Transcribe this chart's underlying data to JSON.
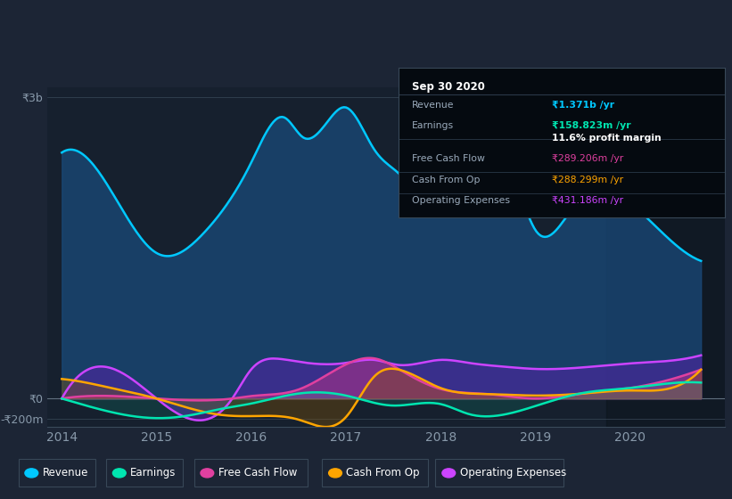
{
  "bg_color": "#1c2535",
  "plot_bg": "#16202e",
  "ylabel_top": "₹3b",
  "ylabel_zero": "₹0",
  "ylabel_neg": "-₹200m",
  "x_labels": [
    "2014",
    "2015",
    "2016",
    "2017",
    "2018",
    "2019",
    "2020"
  ],
  "legend_items": [
    "Revenue",
    "Earnings",
    "Free Cash Flow",
    "Cash From Op",
    "Operating Expenses"
  ],
  "legend_colors": [
    "#00c8ff",
    "#00e5b0",
    "#e040a0",
    "#ffa500",
    "#cc44ff"
  ],
  "info_box": {
    "title": "Sep 30 2020",
    "rows": [
      {
        "label": "Revenue",
        "value": "₹1.371b /yr",
        "value_color": "#00c8ff",
        "bold": true
      },
      {
        "label": "Earnings",
        "value": "₹158.823m /yr",
        "value_color": "#00e5b0",
        "bold": true
      },
      {
        "label": "",
        "value": "11.6% profit margin",
        "value_color": "#ffffff",
        "bold": true
      },
      {
        "label": "Free Cash Flow",
        "value": "₹289.206m /yr",
        "value_color": "#e040a0",
        "bold": false
      },
      {
        "label": "Cash From Op",
        "value": "₹288.299m /yr",
        "value_color": "#ffa500",
        "bold": false
      },
      {
        "label": "Operating Expenses",
        "value": "₹431.186m /yr",
        "value_color": "#cc44ff",
        "bold": false
      }
    ]
  },
  "revenue_x": [
    2014.0,
    2014.5,
    2015.0,
    2015.5,
    2016.0,
    2016.35,
    2016.55,
    2016.8,
    2017.0,
    2017.3,
    2017.55,
    2018.0,
    2018.4,
    2018.8,
    2019.0,
    2019.4,
    2019.7,
    2020.0,
    2020.4,
    2020.75
  ],
  "revenue_y": [
    2450,
    2100,
    1450,
    1650,
    2350,
    2800,
    2600,
    2750,
    2900,
    2480,
    2250,
    1850,
    2020,
    2100,
    1680,
    1900,
    2080,
    1950,
    1600,
    1371
  ],
  "earnings_x": [
    2014.0,
    2014.5,
    2015.0,
    2015.3,
    2015.7,
    2016.0,
    2016.5,
    2017.0,
    2017.5,
    2018.0,
    2018.3,
    2018.6,
    2019.0,
    2019.5,
    2020.0,
    2020.4,
    2020.75
  ],
  "earnings_y": [
    0,
    -130,
    -195,
    -175,
    -100,
    -50,
    50,
    30,
    -70,
    -55,
    -155,
    -170,
    -75,
    55,
    105,
    150,
    159
  ],
  "fcf_x": [
    2014.0,
    2015.0,
    2015.8,
    2016.0,
    2016.5,
    2017.0,
    2017.3,
    2017.6,
    2018.0,
    2018.5,
    2019.0,
    2019.5,
    2020.0,
    2020.5,
    2020.75
  ],
  "fcf_y": [
    0,
    0,
    0,
    25,
    90,
    340,
    400,
    270,
    95,
    45,
    0,
    50,
    105,
    210,
    289
  ],
  "cfo_x": [
    2014.0,
    2014.25,
    2014.5,
    2015.0,
    2015.4,
    2015.7,
    2016.0,
    2016.5,
    2017.0,
    2017.3,
    2017.55,
    2018.0,
    2018.5,
    2019.0,
    2019.5,
    2020.0,
    2020.5,
    2020.75
  ],
  "cfo_y": [
    195,
    160,
    110,
    0,
    -110,
    -165,
    -175,
    -210,
    -185,
    220,
    290,
    105,
    45,
    30,
    50,
    80,
    125,
    288
  ],
  "opex_x": [
    2014.0,
    2015.0,
    2015.8,
    2016.0,
    2016.3,
    2016.55,
    2017.0,
    2017.3,
    2017.55,
    2018.0,
    2018.3,
    2018.7,
    2019.0,
    2019.5,
    2020.0,
    2020.5,
    2020.75
  ],
  "opex_y": [
    0,
    0,
    0,
    290,
    395,
    360,
    355,
    385,
    335,
    385,
    355,
    315,
    295,
    310,
    350,
    385,
    431
  ],
  "ylim": [
    -280,
    3100
  ],
  "xlim": [
    2013.85,
    2021.0
  ],
  "dark_start": 2019.75
}
